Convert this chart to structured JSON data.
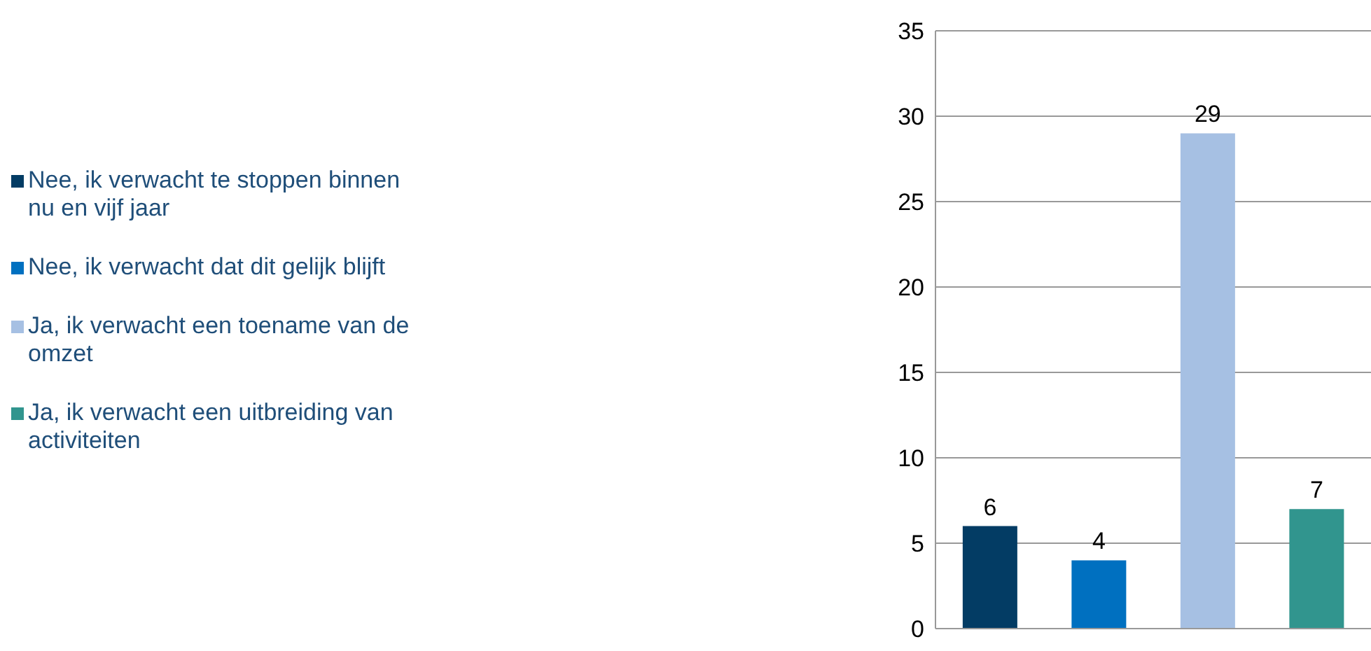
{
  "chart_data": {
    "type": "bar",
    "categories": [
      null,
      null,
      null,
      null
    ],
    "series": [
      {
        "name": "Nee, ik verwacht te stoppen binnen nu en vijf jaar",
        "color": "#033c64",
        "values": [
          6,
          null,
          null,
          null
        ]
      },
      {
        "name": "Nee, ik verwacht dat dit gelijk blijft",
        "color": "#0070c0",
        "values": [
          null,
          4,
          null,
          null
        ]
      },
      {
        "name": "Ja, ik verwacht een toename van de omzet",
        "color": "#a6c0e3",
        "values": [
          null,
          null,
          29,
          null
        ]
      },
      {
        "name": "Ja, ik verwacht een uitbreiding van activiteiten",
        "color": "#31958e",
        "values": [
          null,
          null,
          null,
          7
        ]
      }
    ],
    "ylim": [
      0,
      35
    ],
    "yticks": [
      0,
      5,
      10,
      15,
      20,
      25,
      30,
      35
    ],
    "grid": "y",
    "legend": "left",
    "tick_labels": "y",
    "data_labels": true
  }
}
